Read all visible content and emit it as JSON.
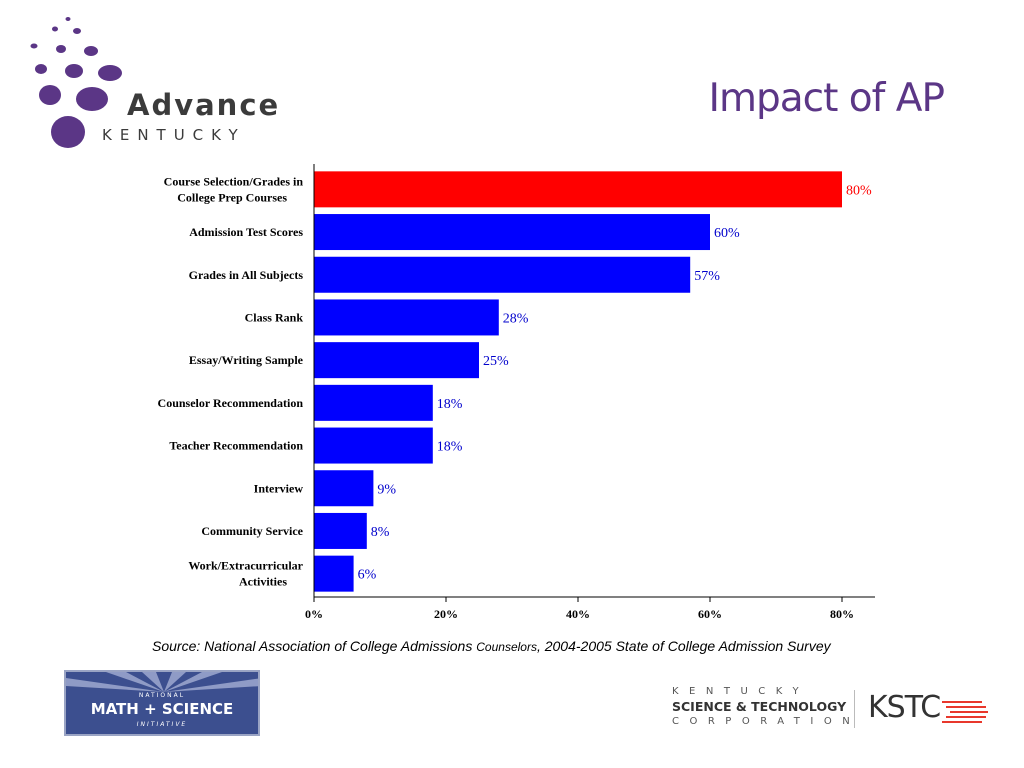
{
  "header": {
    "logo_word": "Advance",
    "logo_sub": "KENTUCKY",
    "title": "Impact of AP"
  },
  "chart_data": {
    "type": "bar",
    "orientation": "horizontal",
    "categories": [
      "Course Selection/Grades in College Prep Courses",
      "Admission Test Scores",
      "Grades in All Subjects",
      "Class Rank",
      "Essay/Writing Sample",
      "Counselor Recommendation",
      "Teacher Recommendation",
      "Interview",
      "Community Service",
      "Work/Extracurricular Activities"
    ],
    "category_label_lines": [
      [
        "Course Selection/Grades in",
        "College Prep Courses"
      ],
      [
        "Admission Test Scores"
      ],
      [
        "Grades in All Subjects"
      ],
      [
        "Class Rank"
      ],
      [
        "Essay/Writing Sample"
      ],
      [
        "Counselor Recommendation"
      ],
      [
        "Teacher Recommendation"
      ],
      [
        "Interview"
      ],
      [
        "Community Service"
      ],
      [
        "Work/Extracurricular",
        "Activities"
      ]
    ],
    "values": [
      80,
      60,
      57,
      28,
      25,
      18,
      18,
      9,
      8,
      6
    ],
    "value_labels": [
      "80%",
      "60%",
      "57%",
      "28%",
      "25%",
      "18%",
      "18%",
      "9%",
      "8%",
      "6%"
    ],
    "xlim": [
      0,
      85
    ],
    "xticks": [
      0,
      20,
      40,
      60,
      80
    ],
    "xtick_labels": [
      "0%",
      "20%",
      "40%",
      "60%",
      "80%"
    ],
    "title": "",
    "xlabel": "",
    "ylabel": "",
    "grid": false,
    "colors": {
      "highlight": "#ff0000",
      "default": "#0000ff",
      "highlight_label": "#ff0000",
      "default_label": "#0000cc"
    }
  },
  "source": {
    "prefix": "Source: National Association of College Admissions ",
    "small": "Counselors",
    "suffix": ", 2004-2005 State of College Admission Survey"
  },
  "footer": {
    "nmsi": {
      "top": "NATIONAL",
      "main": "MATH + SCIENCE",
      "bottom": "INITIATIVE"
    },
    "kstc": {
      "line1": "KENTUCKY",
      "line2": "SCIENCE & TECHNOLOGY",
      "line3": "CORPORATION",
      "mark": "KSTC"
    }
  },
  "theme": {
    "title_color": "#5b3686",
    "logo_purple": "#5b3686"
  }
}
